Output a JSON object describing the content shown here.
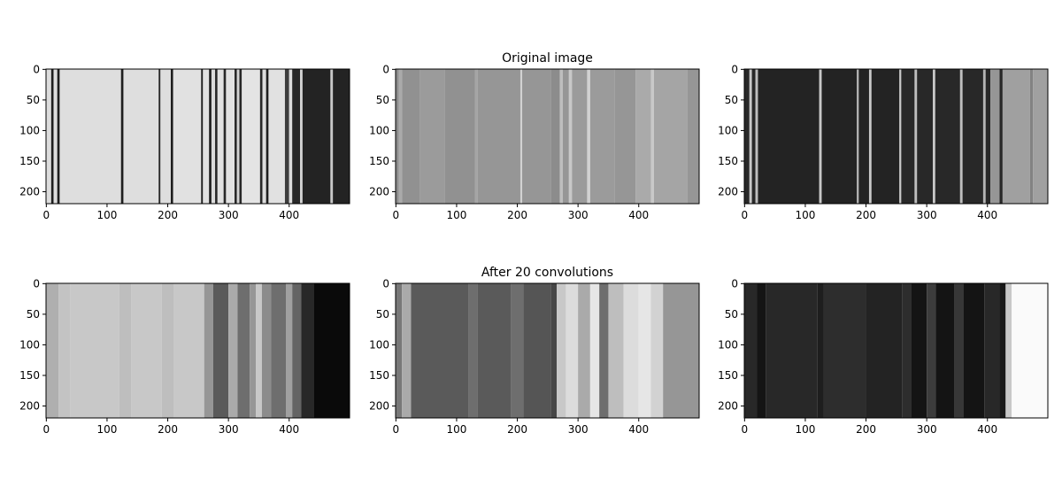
{
  "chart_data": [
    {
      "type": "image",
      "xlim": [
        -0.5,
        499.5
      ],
      "ylim": [
        219.5,
        -0.5
      ],
      "xticks": [
        0,
        100,
        200,
        300,
        400
      ],
      "yticks": [
        0,
        50,
        100,
        150,
        200
      ],
      "x": [
        0,
        8,
        12,
        18,
        22,
        123,
        127,
        185,
        188,
        205,
        209,
        255,
        258,
        268,
        272,
        278,
        282,
        292,
        296,
        310,
        314,
        318,
        322,
        352,
        356,
        362,
        366,
        393,
        400,
        405,
        418,
        422,
        468,
        472
      ],
      "values": [
        220,
        30,
        220,
        30,
        222,
        30,
        222,
        40,
        222,
        30,
        225,
        30,
        225,
        30,
        220,
        40,
        225,
        40,
        225,
        40,
        210,
        40,
        228,
        40,
        220,
        30,
        225,
        60,
        220,
        40,
        210,
        35,
        200,
        35
      ]
    },
    {
      "type": "image",
      "title": "Original image",
      "xlim": [
        -0.5,
        499.5
      ],
      "ylim": [
        219.5,
        -0.5
      ],
      "xticks": [
        0,
        100,
        200,
        300,
        400
      ],
      "yticks": [
        0,
        50,
        100,
        150,
        200
      ],
      "x": [
        0,
        5,
        10,
        40,
        80,
        130,
        135,
        205,
        208,
        255,
        270,
        275,
        285,
        290,
        315,
        320,
        360,
        395,
        420,
        425,
        480
      ],
      "values": [
        140,
        170,
        145,
        155,
        145,
        165,
        150,
        210,
        150,
        140,
        190,
        150,
        200,
        155,
        210,
        155,
        150,
        170,
        200,
        165,
        150
      ]
    },
    {
      "type": "image",
      "xlim": [
        -0.5,
        499.5
      ],
      "ylim": [
        219.5,
        -0.5
      ],
      "xticks": [
        0,
        100,
        200,
        300,
        400
      ],
      "yticks": [
        0,
        50,
        100,
        150,
        200
      ],
      "x": [
        0,
        8,
        12,
        18,
        22,
        123,
        127,
        185,
        188,
        205,
        209,
        255,
        258,
        280,
        284,
        310,
        314,
        355,
        359,
        393,
        397,
        405,
        420,
        425,
        470,
        475
      ],
      "values": [
        40,
        200,
        40,
        190,
        35,
        200,
        35,
        180,
        35,
        200,
        35,
        200,
        40,
        190,
        40,
        200,
        40,
        190,
        40,
        180,
        40,
        150,
        40,
        160,
        130,
        160
      ]
    },
    {
      "type": "image",
      "xlim": [
        -0.5,
        499.5
      ],
      "ylim": [
        219.5,
        -0.5
      ],
      "xticks": [
        0,
        100,
        200,
        300,
        400
      ],
      "yticks": [
        0,
        50,
        100,
        150,
        200
      ],
      "x": [
        0,
        20,
        40,
        120,
        140,
        190,
        210,
        260,
        275,
        300,
        315,
        335,
        345,
        355,
        370,
        395,
        405,
        420,
        440
      ],
      "values": [
        175,
        195,
        200,
        190,
        200,
        190,
        200,
        150,
        90,
        170,
        110,
        150,
        200,
        140,
        110,
        160,
        100,
        40,
        10
      ]
    },
    {
      "type": "image",
      "title": "After 20 convolutions",
      "xlim": [
        -0.5,
        499.5
      ],
      "ylim": [
        219.5,
        -0.5
      ],
      "xticks": [
        0,
        100,
        200,
        300,
        400
      ],
      "yticks": [
        0,
        50,
        100,
        150,
        200
      ],
      "x": [
        0,
        10,
        25,
        120,
        135,
        190,
        210,
        255,
        265,
        280,
        300,
        320,
        335,
        350,
        375,
        400,
        420,
        440
      ],
      "values": [
        120,
        170,
        90,
        110,
        90,
        110,
        85,
        70,
        200,
        220,
        170,
        230,
        110,
        190,
        220,
        230,
        210,
        150
      ]
    },
    {
      "type": "image",
      "xlim": [
        -0.5,
        499.5
      ],
      "ylim": [
        219.5,
        -0.5
      ],
      "xticks": [
        0,
        100,
        200,
        300,
        400
      ],
      "yticks": [
        0,
        50,
        100,
        150,
        200
      ],
      "x": [
        0,
        20,
        35,
        120,
        130,
        200,
        260,
        275,
        300,
        315,
        345,
        360,
        395,
        420,
        430,
        440
      ],
      "values": [
        40,
        20,
        40,
        30,
        45,
        35,
        45,
        20,
        60,
        20,
        55,
        20,
        40,
        25,
        200,
        250
      ]
    }
  ]
}
